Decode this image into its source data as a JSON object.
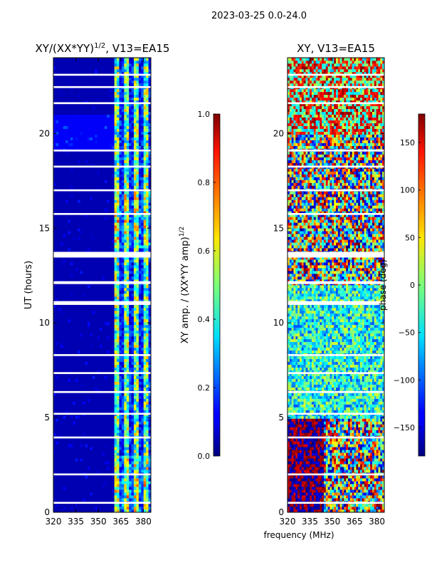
{
  "suptitle": "2023-03-25 0.0-24.0",
  "colors": {
    "background": "#00007f",
    "gap": "#ffffff"
  },
  "chart_data": [
    {
      "type": "heatmap",
      "title_main": "XY/(XX*YY)",
      "title_sup": "1/2",
      "title_tail": ", V13=EA15",
      "xlabel": "",
      "ylabel": "UT (hours)",
      "xlim": [
        320,
        385
      ],
      "ylim": [
        0,
        24
      ],
      "xticks": [
        "320",
        "335",
        "350",
        "365",
        "380"
      ],
      "xtick_values": [
        320,
        335,
        350,
        365,
        380
      ],
      "yticks": [
        "0",
        "5",
        "10",
        "15",
        "20"
      ],
      "ytick_values": [
        0,
        5,
        10,
        15,
        20
      ],
      "description_values": {
        "low_band_level": 0.05,
        "high_band_start_mhz": 361,
        "high_band_level": 0.5
      },
      "colorbar": {
        "label_main": "XY amp. / (XX*YY amp)",
        "label_sup": "1/2",
        "range": [
          0.0,
          1.0
        ],
        "ticks": [
          "0.0",
          "0.2",
          "0.4",
          "0.6",
          "0.8",
          "1.0"
        ],
        "tick_values": [
          0.0,
          0.2,
          0.4,
          0.6,
          0.8,
          1.0
        ]
      }
    },
    {
      "type": "heatmap",
      "title": "XY, V13=EA15",
      "xlabel": "frequency (MHz)",
      "ylabel": "",
      "xlim": [
        320,
        385
      ],
      "ylim": [
        0,
        24
      ],
      "xticks": [
        "320",
        "335",
        "350",
        "365",
        "380"
      ],
      "xtick_values": [
        320,
        335,
        350,
        365,
        380
      ],
      "yticks": [
        "0",
        "5",
        "10",
        "15",
        "20"
      ],
      "ytick_values": [
        0,
        5,
        10,
        15,
        20
      ],
      "colorbar": {
        "label": "phase (deg)",
        "range": [
          -180,
          180
        ],
        "ticks": [
          "−150",
          "−100",
          "−50",
          "0",
          "50",
          "100",
          "150"
        ],
        "tick_values": [
          -150,
          -100,
          -50,
          0,
          50,
          100,
          150
        ]
      }
    }
  ],
  "gap_hours": [
    5.15,
    5.25,
    13.45,
    13.75,
    10.95,
    11.15,
    12.05,
    12.2,
    1.95,
    2.05,
    3.9,
    4.0,
    6.3,
    6.4,
    7.3,
    7.4,
    8.25,
    8.35,
    15.7,
    15.8,
    16.95,
    17.05,
    18.2,
    18.3,
    19.05,
    19.15,
    21.55,
    21.65,
    22.4,
    22.5,
    23.05,
    23.15,
    0.45,
    0.55
  ]
}
